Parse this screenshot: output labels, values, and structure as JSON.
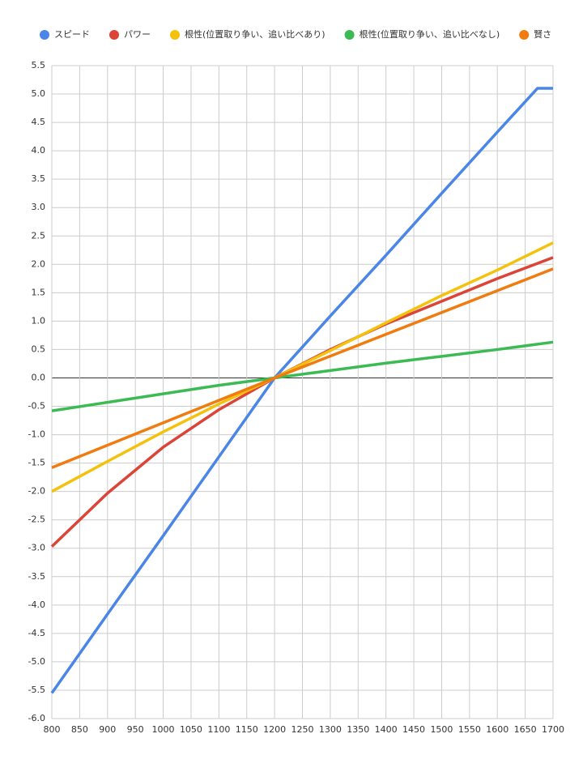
{
  "chart_data": {
    "type": "line",
    "series": [
      {
        "name": "スピード",
        "color": "#4a86e8",
        "x": [
          800,
          900,
          1000,
          1100,
          1200,
          1300,
          1400,
          1500,
          1600,
          1672,
          1700
        ],
        "values": [
          -5.55,
          -4.16,
          -2.78,
          -1.39,
          0,
          1.09,
          2.16,
          3.25,
          4.33,
          5.1,
          5.1
        ]
      },
      {
        "name": "パワー",
        "color": "#db4437",
        "x": [
          800,
          900,
          1000,
          1100,
          1200,
          1300,
          1400,
          1500,
          1600,
          1700
        ],
        "values": [
          -2.97,
          -2.03,
          -1.22,
          -0.56,
          0,
          0.5,
          0.95,
          1.35,
          1.75,
          2.12
        ]
      },
      {
        "name": "根性(位置取り争い、追い比べあり)",
        "color": "#f4c20d",
        "x": [
          800,
          900,
          1000,
          1100,
          1200,
          1300,
          1400,
          1500,
          1600,
          1700
        ],
        "values": [
          -2.0,
          -1.47,
          -0.95,
          -0.46,
          0,
          0.48,
          0.97,
          1.45,
          1.9,
          2.38
        ]
      },
      {
        "name": "根性(位置取り争い、追い比べなし)",
        "color": "#3cba54",
        "x": [
          800,
          900,
          1000,
          1100,
          1200,
          1300,
          1400,
          1500,
          1600,
          1700
        ],
        "values": [
          -0.58,
          -0.43,
          -0.28,
          -0.13,
          0,
          0.13,
          0.26,
          0.38,
          0.5,
          0.63
        ]
      },
      {
        "name": "賢さ",
        "color": "#f07b0f",
        "x": [
          800,
          1000,
          1200,
          1450,
          1700
        ],
        "values": [
          -1.58,
          -0.79,
          0,
          0.96,
          1.92
        ]
      }
    ],
    "xlim": [
      800,
      1700
    ],
    "xticks": [
      800,
      850,
      900,
      950,
      1000,
      1050,
      1100,
      1150,
      1200,
      1250,
      1300,
      1350,
      1400,
      1450,
      1500,
      1550,
      1600,
      1650,
      1700
    ],
    "ylim": [
      -6,
      5.5
    ],
    "yticks": [
      {
        "value": -6,
        "label": "-6.0"
      },
      -5.5,
      {
        "value": -5,
        "label": "-5.0"
      },
      -4.5,
      {
        "value": -4,
        "label": "-4.0"
      },
      -3.5,
      {
        "value": -3,
        "label": "-3.0"
      },
      -2.5,
      {
        "value": -2,
        "label": "-2.0"
      },
      -1.5,
      {
        "value": -1,
        "label": "-1.0"
      },
      -0.5,
      {
        "value": 0,
        "label": "0.0"
      },
      0.5,
      {
        "value": 1,
        "label": "1.0"
      },
      1.5,
      {
        "value": 2,
        "label": "2.0"
      },
      2.5,
      {
        "value": 3,
        "label": "3.0"
      },
      3.5,
      {
        "value": 4,
        "label": "4.0"
      },
      4.5,
      {
        "value": 5,
        "label": "5.0"
      },
      5.5
    ],
    "grid": true,
    "legend": "top"
  }
}
